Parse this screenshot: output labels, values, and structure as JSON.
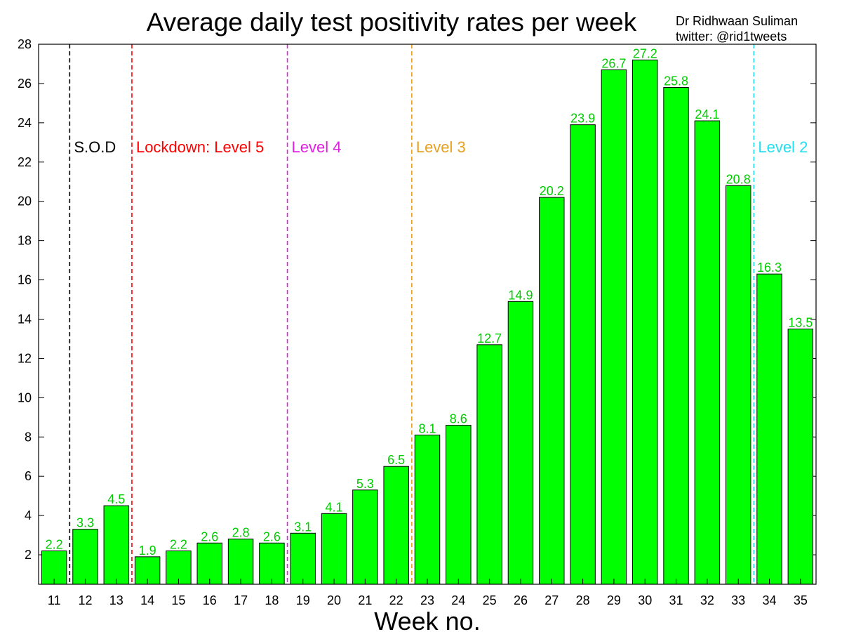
{
  "chart_data": {
    "type": "bar",
    "title": "Average daily test positivity rates per week",
    "credit": [
      "Dr Ridhwaan Suliman",
      "twitter: @rid1tweets"
    ],
    "xlabel": "Week no.",
    "ylabel": "",
    "ylim": [
      0.5,
      28
    ],
    "yticks": [
      2,
      4,
      6,
      8,
      10,
      12,
      14,
      16,
      18,
      20,
      22,
      24,
      26,
      28
    ],
    "categories": [
      "11",
      "12",
      "13",
      "14",
      "15",
      "16",
      "17",
      "18",
      "19",
      "20",
      "21",
      "22",
      "23",
      "24",
      "25",
      "26",
      "27",
      "28",
      "29",
      "30",
      "31",
      "32",
      "33",
      "34",
      "35"
    ],
    "values": [
      2.2,
      3.3,
      4.5,
      1.9,
      2.2,
      2.6,
      2.8,
      2.6,
      3.1,
      4.1,
      5.3,
      6.5,
      8.1,
      8.6,
      12.7,
      14.9,
      20.2,
      23.9,
      26.7,
      27.2,
      25.8,
      24.1,
      20.8,
      16.3,
      13.5
    ],
    "bar_color": "#00ff00",
    "label_color": "#00cc00",
    "grid": false,
    "annotations": [
      {
        "label": "S.O.D",
        "after": "11",
        "color": "#000000"
      },
      {
        "label": "Lockdown: Level 5",
        "after": "13",
        "color": "#ff0000"
      },
      {
        "label": "Level 4",
        "after": "18",
        "color": "#e020e0"
      },
      {
        "label": "Level 3",
        "after": "22",
        "color": "#e8a020"
      },
      {
        "label": "Level 2",
        "after": "33",
        "color": "#20e0f0"
      }
    ]
  }
}
